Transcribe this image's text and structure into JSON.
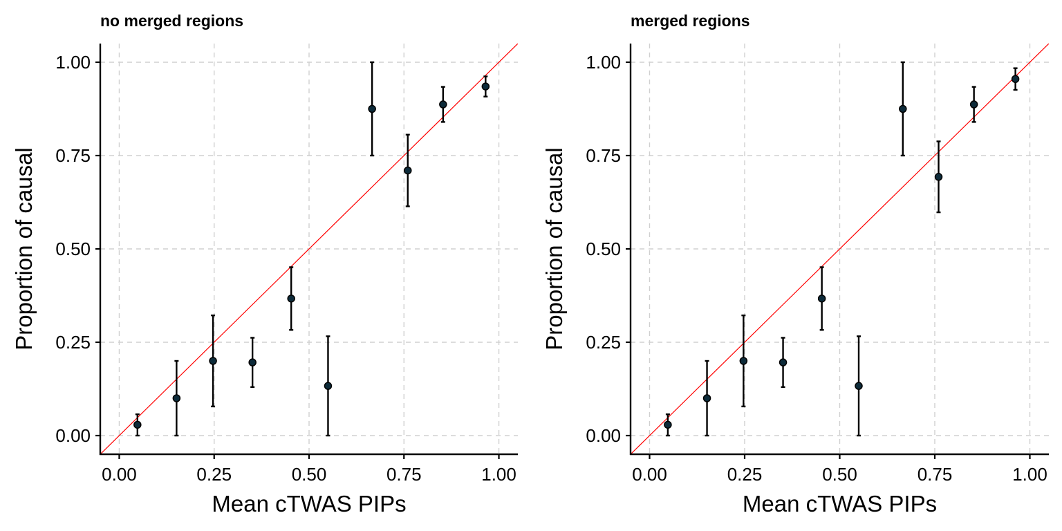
{
  "chart_data": [
    {
      "type": "scatter",
      "title": "no merged regions",
      "xlabel": "Mean cTWAS PIPs",
      "ylabel": "Proportion of causal",
      "xlim": [
        -0.05,
        1.05
      ],
      "ylim": [
        -0.05,
        1.05
      ],
      "xticks": [
        0,
        0.25,
        0.5,
        0.75,
        1
      ],
      "xtick_labels": [
        "0.00",
        "0.25",
        "0.50",
        "0.75",
        "1.00"
      ],
      "yticks": [
        0,
        0.25,
        0.5,
        0.75,
        1
      ],
      "ytick_labels": [
        "0.00",
        "0.25",
        "0.50",
        "0.75",
        "1.00"
      ],
      "grid": true,
      "reference_line": {
        "slope": 1,
        "intercept": 0,
        "color": "#ff0000"
      },
      "points": [
        {
          "x": 0.048,
          "y": 0.029,
          "lower": 0.0,
          "upper": 0.057
        },
        {
          "x": 0.151,
          "y": 0.1,
          "lower": 0.0,
          "upper": 0.2
        },
        {
          "x": 0.247,
          "y": 0.2,
          "lower": 0.078,
          "upper": 0.322
        },
        {
          "x": 0.351,
          "y": 0.196,
          "lower": 0.13,
          "upper": 0.262
        },
        {
          "x": 0.453,
          "y": 0.367,
          "lower": 0.283,
          "upper": 0.451
        },
        {
          "x": 0.55,
          "y": 0.133,
          "lower": 0.0,
          "upper": 0.266
        },
        {
          "x": 0.666,
          "y": 0.875,
          "lower": 0.75,
          "upper": 1.0
        },
        {
          "x": 0.76,
          "y": 0.71,
          "lower": 0.614,
          "upper": 0.806
        },
        {
          "x": 0.853,
          "y": 0.887,
          "lower": 0.84,
          "upper": 0.934
        },
        {
          "x": 0.965,
          "y": 0.935,
          "lower": 0.908,
          "upper": 0.962
        }
      ]
    },
    {
      "type": "scatter",
      "title": "merged regions",
      "xlabel": "Mean cTWAS PIPs",
      "ylabel": "Proportion of causal",
      "xlim": [
        -0.05,
        1.05
      ],
      "ylim": [
        -0.05,
        1.05
      ],
      "xticks": [
        0,
        0.25,
        0.5,
        0.75,
        1
      ],
      "xtick_labels": [
        "0.00",
        "0.25",
        "0.50",
        "0.75",
        "1.00"
      ],
      "yticks": [
        0,
        0.25,
        0.5,
        0.75,
        1
      ],
      "ytick_labels": [
        "0.00",
        "0.25",
        "0.50",
        "0.75",
        "1.00"
      ],
      "grid": true,
      "reference_line": {
        "slope": 1,
        "intercept": 0,
        "color": "#ff0000"
      },
      "points": [
        {
          "x": 0.048,
          "y": 0.029,
          "lower": 0.0,
          "upper": 0.057
        },
        {
          "x": 0.151,
          "y": 0.1,
          "lower": 0.0,
          "upper": 0.2
        },
        {
          "x": 0.247,
          "y": 0.2,
          "lower": 0.078,
          "upper": 0.322
        },
        {
          "x": 0.351,
          "y": 0.196,
          "lower": 0.13,
          "upper": 0.262
        },
        {
          "x": 0.453,
          "y": 0.367,
          "lower": 0.283,
          "upper": 0.451
        },
        {
          "x": 0.55,
          "y": 0.133,
          "lower": 0.0,
          "upper": 0.266
        },
        {
          "x": 0.666,
          "y": 0.875,
          "lower": 0.75,
          "upper": 1.0
        },
        {
          "x": 0.76,
          "y": 0.693,
          "lower": 0.598,
          "upper": 0.788
        },
        {
          "x": 0.853,
          "y": 0.887,
          "lower": 0.84,
          "upper": 0.934
        },
        {
          "x": 0.962,
          "y": 0.955,
          "lower": 0.926,
          "upper": 0.984
        }
      ]
    }
  ]
}
